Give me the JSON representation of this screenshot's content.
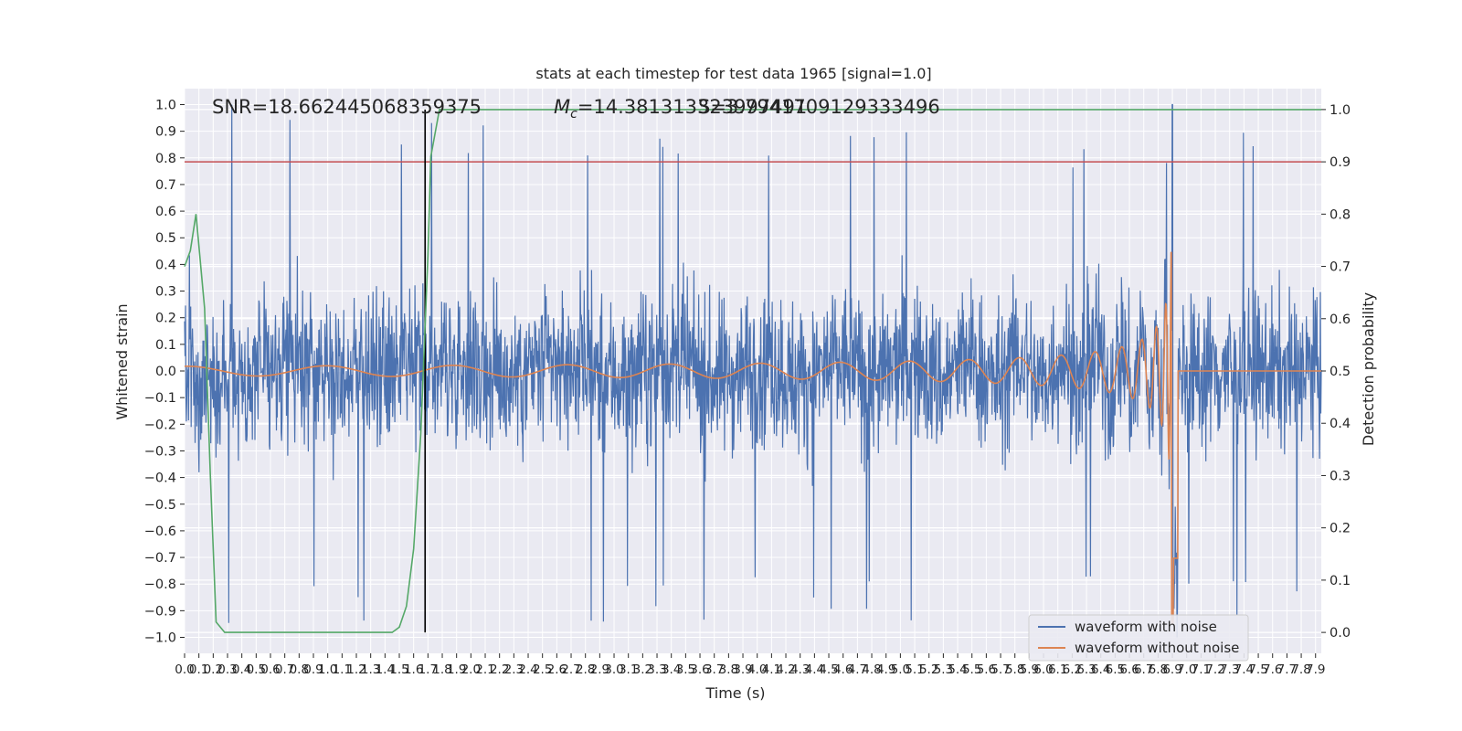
{
  "chart_data": {
    "type": "line",
    "title": "stats at each timestep for test data 1965 [signal=1.0]",
    "xlabel": "Time (s)",
    "ylabel": "Whitened strain",
    "y2label": "Detection probability",
    "xlim": [
      0.0,
      7.94
    ],
    "ylim": [
      -1.06,
      1.06
    ],
    "y2lim": [
      -0.04,
      1.04
    ],
    "x_ticks": [
      "0.0",
      "0.1",
      "0.2",
      "0.3",
      "0.4",
      "0.5",
      "0.6",
      "0.7",
      "0.8",
      "0.9",
      "1.0",
      "1.1",
      "1.2",
      "1.3",
      "1.4",
      "1.5",
      "1.6",
      "1.7",
      "1.8",
      "1.9",
      "2.0",
      "2.1",
      "2.2",
      "2.3",
      "2.4",
      "2.5",
      "2.6",
      "2.7",
      "2.8",
      "2.9",
      "3.0",
      "3.1",
      "3.2",
      "3.3",
      "3.4",
      "3.5",
      "3.6",
      "3.7",
      "3.8",
      "3.9",
      "4.0",
      "4.1",
      "4.2",
      "4.3",
      "4.4",
      "4.5",
      "4.6",
      "4.7",
      "4.8",
      "4.9",
      "5.0",
      "5.1",
      "5.2",
      "5.3",
      "5.4",
      "5.5",
      "5.6",
      "5.7",
      "5.8",
      "5.9",
      "6.0",
      "6.1",
      "6.2",
      "6.3",
      "6.4",
      "6.5",
      "6.6",
      "6.7",
      "6.8",
      "6.9",
      "7.0",
      "7.1",
      "7.2",
      "7.3",
      "7.4",
      "7.5",
      "7.6",
      "7.7",
      "7.8",
      "7.9"
    ],
    "y_ticks": [
      "1.0",
      "0.9",
      "0.8",
      "0.7",
      "0.6",
      "0.5",
      "0.4",
      "0.3",
      "0.2",
      "0.1",
      "0.0",
      "−0.1",
      "−0.2",
      "−0.3",
      "−0.4",
      "−0.5",
      "−0.6",
      "−0.7",
      "−0.8",
      "−0.9",
      "−1.0"
    ],
    "y2_ticks": [
      "1.0",
      "0.9",
      "0.8",
      "0.7",
      "0.6",
      "0.5",
      "0.4",
      "0.3",
      "0.2",
      "0.1",
      "0.0"
    ],
    "annotations": {
      "snr": "SNR=18.662445068359375",
      "mc_symbol": "M",
      "mc_sub": "c",
      "mc_value": "=14.381313323997491",
      "s_overlap": "S=3.79417091293334​96"
    },
    "threshold_probability": 0.9,
    "detection_time": 1.68,
    "merger_time": 6.9,
    "noise_amplitude": 1.0,
    "series": [
      {
        "name": "waveform with noise",
        "color": "#4c72b0",
        "description_values": {
          "typical_band": [
            -0.45,
            0.45
          ],
          "max_spike": 1.0
        }
      },
      {
        "name": "waveform without noise",
        "color": "#dd8452",
        "description_values": {
          "early_amplitude": 0.02,
          "peak_amplitude": 0.72,
          "min_value": -0.95
        }
      },
      {
        "name": "detection probability",
        "color": "#55a868",
        "x": [
          0.0,
          0.04,
          0.08,
          0.14,
          0.18,
          0.22,
          0.28,
          0.34,
          0.4,
          0.5,
          0.8,
          1.2,
          1.45,
          1.5,
          1.55,
          1.6,
          1.65,
          1.7,
          1.72,
          1.78,
          1.8,
          7.94
        ],
        "values": [
          0.7,
          0.73,
          0.8,
          0.62,
          0.3,
          0.02,
          0.0,
          0.0,
          0.0,
          0.0,
          0.0,
          0.0,
          0.0,
          0.01,
          0.05,
          0.16,
          0.38,
          0.72,
          0.91,
          1.0,
          1.0,
          1.0
        ]
      },
      {
        "name": "threshold",
        "color": "#c44e52",
        "values": [
          0.9
        ]
      }
    ],
    "legend": {
      "placement": "lower-right",
      "entries": [
        {
          "label": "waveform with noise",
          "color": "#4c72b0"
        },
        {
          "label": "waveform without noise",
          "color": "#dd8452"
        }
      ]
    }
  }
}
